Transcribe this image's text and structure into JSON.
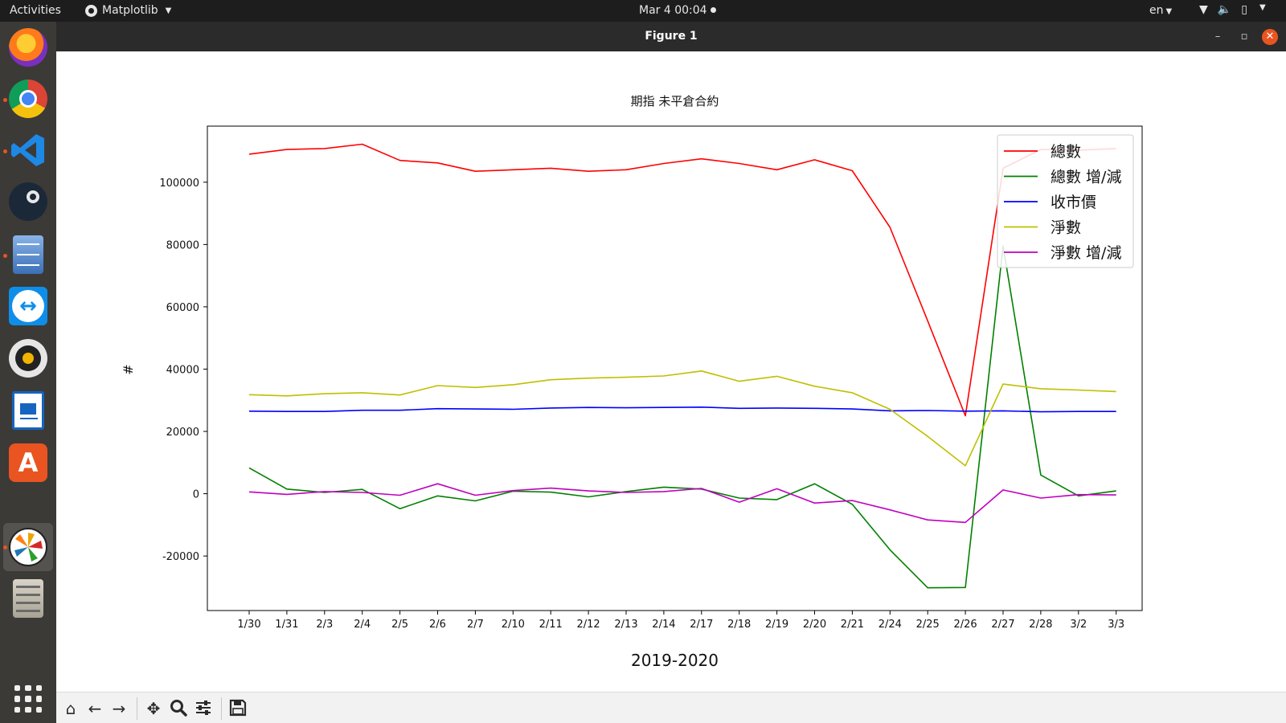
{
  "topbar": {
    "activities": "Activities",
    "app_name": "Matplotlib",
    "clock": "Mar 4  00:04",
    "lang": "en"
  },
  "dock": {
    "items": [
      "firefox-icon",
      "chrome-icon",
      "vscode-icon",
      "steam-icon",
      "file-cabinet-icon",
      "teamviewer-icon",
      "rhythmbox-icon",
      "writer-icon",
      "software-center-icon",
      "matplotlib-icon",
      "server-list-icon"
    ],
    "show_apps": "show-applications-icon"
  },
  "window": {
    "title": "Figure 1"
  },
  "chart_data": {
    "type": "line",
    "title": "期指 未平倉合約",
    "xlabel": "2019-2020",
    "ylabel": "#",
    "categories": [
      "1/30",
      "1/31",
      "2/3",
      "2/4",
      "2/5",
      "2/6",
      "2/7",
      "2/10",
      "2/11",
      "2/12",
      "2/13",
      "2/14",
      "2/17",
      "2/18",
      "2/19",
      "2/20",
      "2/21",
      "2/24",
      "2/25",
      "2/26",
      "2/27",
      "2/28",
      "3/2",
      "3/3"
    ],
    "ylim": [
      -37500,
      118000
    ],
    "yticks": [
      -20000,
      0,
      20000,
      40000,
      60000,
      80000,
      100000
    ],
    "legend_position": "top-right",
    "grid": false,
    "series": [
      {
        "name": "總數",
        "color": "#ff0000",
        "values": [
          109000,
          110500,
          110800,
          112200,
          107000,
          106200,
          103500,
          104000,
          104500,
          103500,
          104000,
          106000,
          107500,
          106000,
          104000,
          107200,
          103700,
          85500,
          55500,
          25000,
          104500,
          110500,
          110300,
          110800
        ]
      },
      {
        "name": "總數 增/減",
        "color": "#008000",
        "values": [
          8300,
          1500,
          400,
          1400,
          -4800,
          -700,
          -2300,
          800,
          500,
          -1000,
          700,
          2100,
          1500,
          -1400,
          -1900,
          3200,
          -3400,
          -18000,
          -30200,
          -30100,
          79500,
          6000,
          -700,
          900
        ]
      },
      {
        "name": "收市價",
        "color": "#0000ff",
        "values": [
          26500,
          26400,
          26400,
          26800,
          26800,
          27300,
          27200,
          27100,
          27500,
          27700,
          27600,
          27700,
          27800,
          27400,
          27500,
          27400,
          27200,
          26600,
          26700,
          26500,
          26600,
          26300,
          26400,
          26400
        ]
      },
      {
        "name": "淨數",
        "color": "#bfbf00",
        "values": [
          31800,
          31400,
          32100,
          32400,
          31700,
          34700,
          34100,
          35000,
          36600,
          37100,
          37400,
          37800,
          39400,
          36100,
          37700,
          34500,
          32400,
          27100,
          18400,
          9000,
          35200,
          33700,
          33300,
          32800
        ]
      },
      {
        "name": "淨數 增/減",
        "color": "#bf00bf",
        "values": [
          600,
          -200,
          700,
          400,
          -500,
          3200,
          -500,
          1000,
          1800,
          900,
          400,
          700,
          1700,
          -2700,
          1600,
          -3000,
          -2200,
          -5200,
          -8400,
          -9200,
          1200,
          -1400,
          -300,
          -400
        ]
      }
    ]
  }
}
